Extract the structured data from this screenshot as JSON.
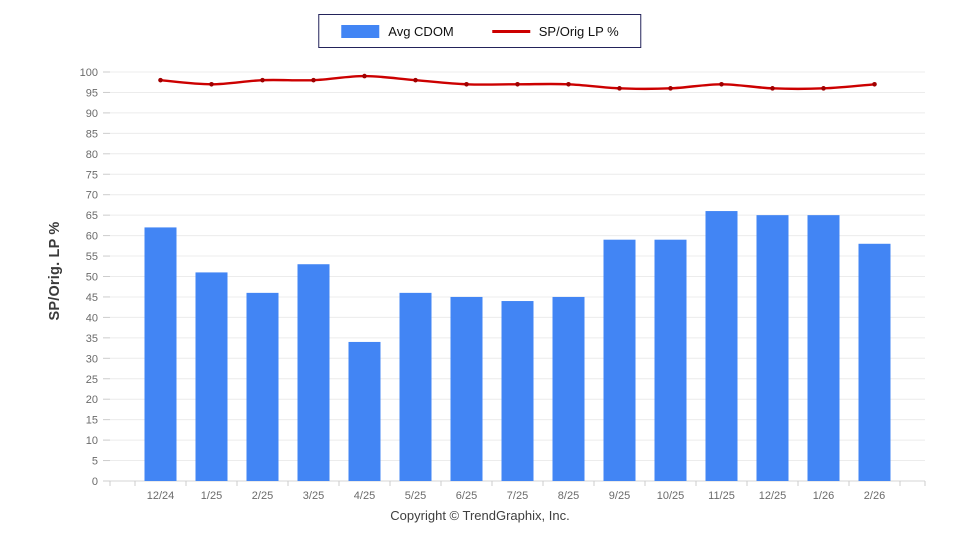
{
  "legend": {
    "items": [
      {
        "label": "Avg CDOM",
        "type": "bar",
        "color": "#4285F4"
      },
      {
        "label": "SP/Orig LP %",
        "type": "line",
        "color": "#CC0000"
      }
    ],
    "border_color": "#23235a"
  },
  "footer": {
    "copyright": "Copyright © TrendGraphix, Inc."
  },
  "colors": {
    "bar": "#4285F4",
    "line": "#CC0000",
    "line_marker": "#A00000",
    "gridline": "#ececec",
    "axis_line": "#d5d5d5",
    "tick_mark": "#cccccc",
    "tick_text": "#6b6b6b"
  },
  "chart_data": {
    "type": "bar",
    "subtype": "bar+line combo",
    "categories": [
      "12/24",
      "1/25",
      "2/25",
      "3/25",
      "4/25",
      "5/25",
      "6/25",
      "7/25",
      "8/25",
      "9/25",
      "10/25",
      "11/25",
      "12/25",
      "1/26",
      "2/26"
    ],
    "series": [
      {
        "name": "Avg CDOM",
        "type": "bar",
        "color": "#4285F4",
        "values": [
          62,
          51,
          46,
          53,
          34,
          46,
          45,
          44,
          45,
          59,
          59,
          66,
          65,
          65,
          58
        ]
      },
      {
        "name": "SP/Orig LP %",
        "type": "line",
        "color": "#CC0000",
        "values": [
          98,
          97,
          98,
          98,
          99,
          98,
          97,
          97,
          97,
          96,
          96,
          97,
          96,
          96,
          97
        ]
      }
    ],
    "title": "",
    "xlabel": "",
    "ylabel": "SP/Orig. LP %",
    "ylim": [
      0,
      100
    ],
    "ytick_step": 5,
    "grid": true,
    "legend_position": "top-center"
  }
}
